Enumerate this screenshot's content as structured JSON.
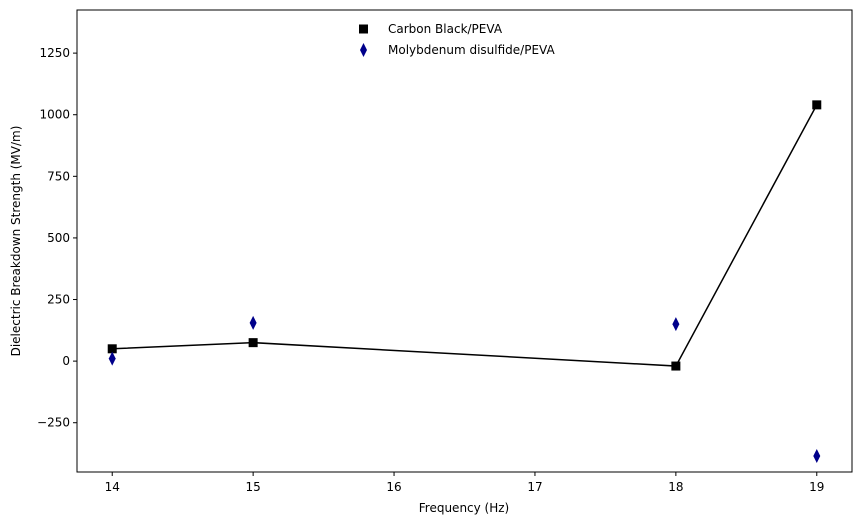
{
  "chart_data": {
    "type": "scatter",
    "title": "",
    "xlabel": "Frequency (Hz)",
    "ylabel": "Dielectric Breakdown Strength (MV/m)",
    "xlim": [
      13.75,
      19.25
    ],
    "ylim": [
      -450,
      1425
    ],
    "xticks": [
      14,
      15,
      16,
      17,
      18,
      19
    ],
    "yticks": [
      -250,
      0,
      250,
      500,
      750,
      1000,
      1250
    ],
    "ytick_labels": [
      "−250",
      "0",
      "250",
      "500",
      "750",
      "1000",
      "1250"
    ],
    "grid": false,
    "legend_position": "upper center",
    "series": [
      {
        "name": "Carbon Black/PEVA",
        "marker": "square",
        "color": "#000000",
        "line": true,
        "line_color": "#000000",
        "x": [
          14,
          15,
          18,
          19
        ],
        "y": [
          50,
          75,
          -20,
          1040
        ]
      },
      {
        "name": "Molybdenum disulfide/PEVA",
        "marker": "thin_diamond",
        "color": "#00008b",
        "line": false,
        "x": [
          14,
          15,
          18,
          19
        ],
        "y": [
          10,
          155,
          150,
          -385
        ]
      }
    ]
  }
}
